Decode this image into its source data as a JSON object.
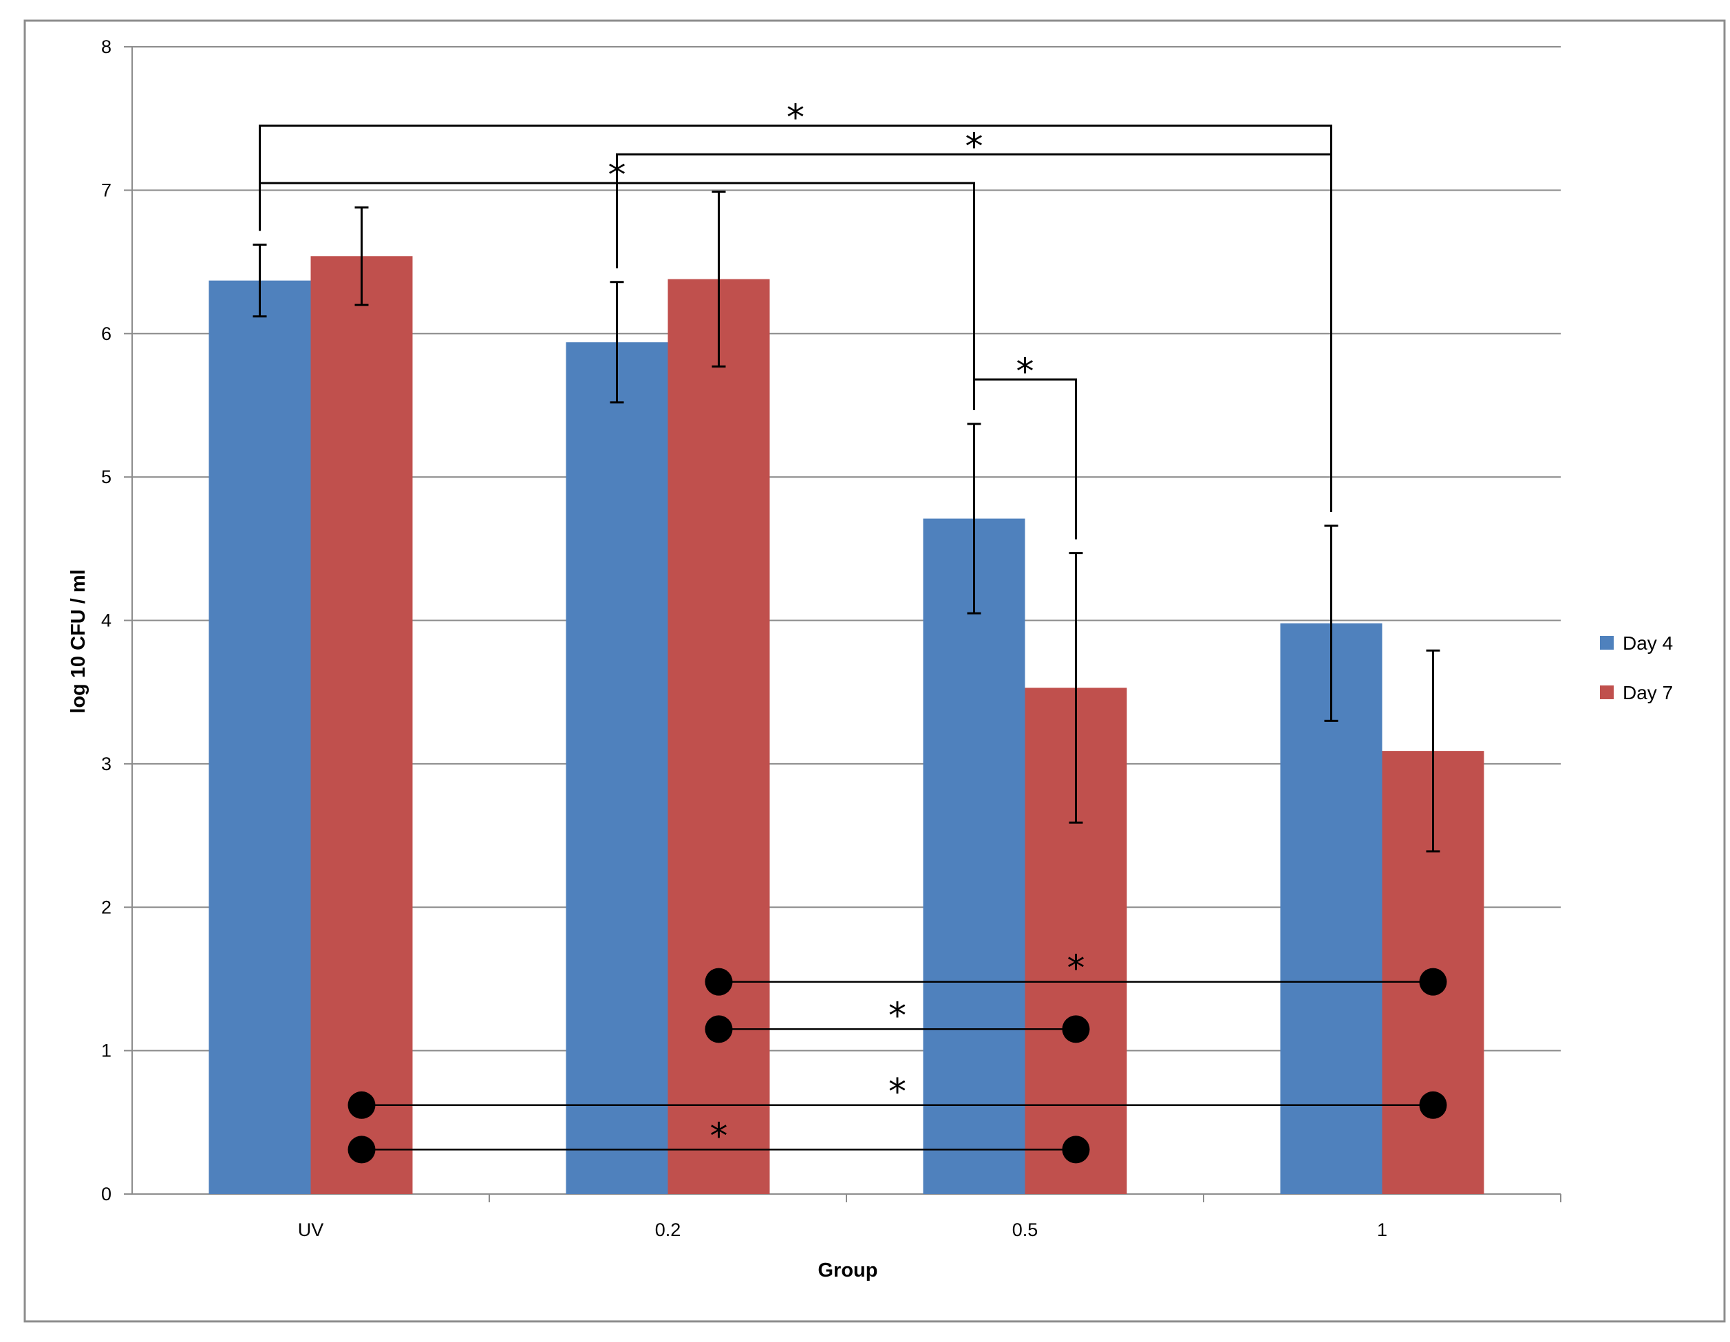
{
  "chart_data": {
    "type": "bar",
    "title": "",
    "xlabel": "Group",
    "ylabel": "log 10 CFU / ml",
    "categories": [
      "UV",
      "0.2",
      "0.5",
      "1"
    ],
    "ylim": [
      0,
      8
    ],
    "yticks": [
      0,
      1,
      2,
      3,
      4,
      5,
      6,
      7,
      8
    ],
    "grid": true,
    "legend_position": "right",
    "series": [
      {
        "name": "Day 4",
        "color": "#4f81bd",
        "values": [
          6.37,
          5.94,
          4.71,
          3.98
        ],
        "errors": [
          0.25,
          0.42,
          0.66,
          0.68
        ]
      },
      {
        "name": "Day 7",
        "color": "#c0504d",
        "values": [
          6.54,
          6.38,
          3.53,
          3.09
        ],
        "errors": [
          0.34,
          0.61,
          0.94,
          0.7
        ]
      }
    ],
    "significance_brackets": [
      {
        "from": [
          0,
          0
        ],
        "to": [
          3,
          0
        ],
        "y": 7.45,
        "label": "*"
      },
      {
        "from": [
          1,
          0
        ],
        "to": [
          3,
          0
        ],
        "y": 7.25,
        "label": "*"
      },
      {
        "from": [
          0,
          0
        ],
        "to": [
          2,
          0
        ],
        "y": 7.05,
        "label": "*"
      },
      {
        "from": [
          2,
          0
        ],
        "to": [
          2,
          1
        ],
        "y": 5.68,
        "label": "*"
      }
    ],
    "significance_lines": [
      {
        "from": [
          1,
          1
        ],
        "to": [
          3,
          1
        ],
        "y": 1.48,
        "label": "*"
      },
      {
        "from": [
          1,
          1
        ],
        "to": [
          2,
          1
        ],
        "y": 1.15,
        "label": "*"
      },
      {
        "from": [
          0,
          1
        ],
        "to": [
          3,
          1
        ],
        "y": 0.62,
        "label": "*"
      },
      {
        "from": [
          0,
          1
        ],
        "to": [
          2,
          1
        ],
        "y": 0.31,
        "label": "*"
      }
    ]
  }
}
